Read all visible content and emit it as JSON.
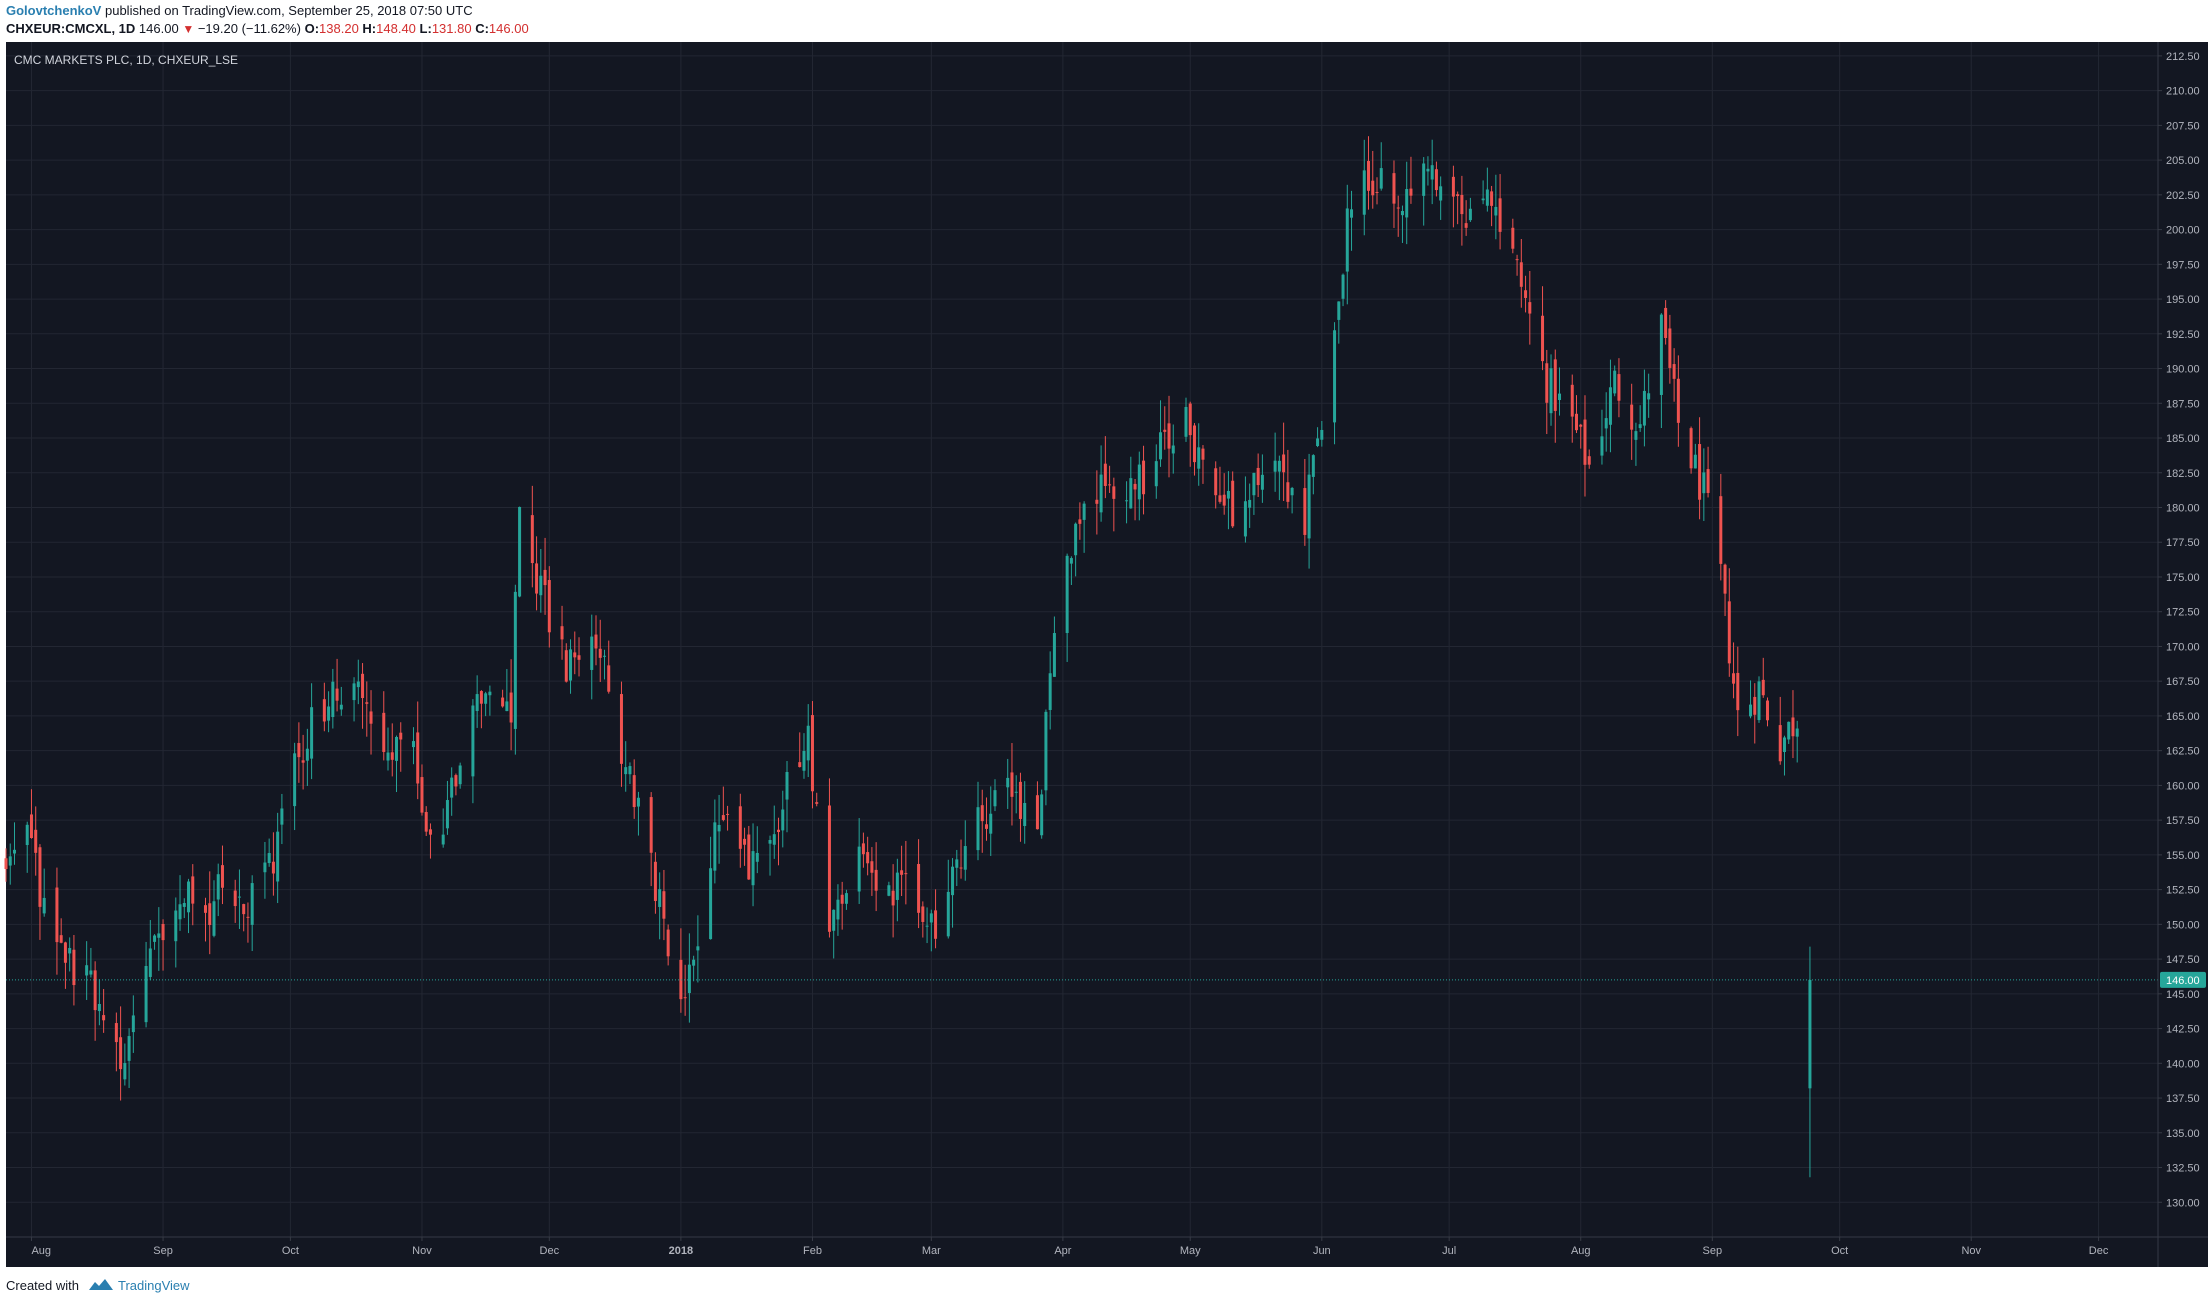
{
  "header": {
    "author": "GolovtchenkoV",
    "published_text": "published on TradingView.com, September 25, 2018 07:50 UTC",
    "symbol": "CHXEUR:CMCXL, 1D",
    "last": "146.00",
    "change": "−19.20 (−11.62%)",
    "o_label": "O:",
    "o_value": "138.20",
    "h_label": "H:",
    "h_value": "148.40",
    "l_label": "L:",
    "l_value": "131.80",
    "c_label": "C:",
    "c_value": "146.00"
  },
  "footer": {
    "created_with": "Created with",
    "brand": "TradingView"
  },
  "colors": {
    "background": "#131722",
    "grid": "#232733",
    "up": "#26a69a",
    "down": "#ef5350",
    "axis_text": "#b2b5be",
    "last_price_bg": "#26a69a"
  },
  "chart_data": {
    "type": "candlestick",
    "title": "CMC MARKETS PLC, 1D, CHXEUR_LSE",
    "ylim": [
      127.5,
      213.5
    ],
    "y_ticks": [
      "130.00",
      "132.50",
      "135.00",
      "137.50",
      "140.00",
      "142.50",
      "145.00",
      "147.50",
      "150.00",
      "152.50",
      "155.00",
      "157.50",
      "160.00",
      "162.50",
      "165.00",
      "167.50",
      "170.00",
      "172.50",
      "175.00",
      "177.50",
      "180.00",
      "182.50",
      "185.00",
      "187.50",
      "190.00",
      "192.50",
      "195.00",
      "197.50",
      "200.00",
      "202.50",
      "205.00",
      "207.50",
      "210.00",
      "212.50"
    ],
    "x_range": [
      "2017-07-26",
      "2018-12-15"
    ],
    "x_ticks": [
      {
        "label": "Aug",
        "date": "2017-08-01",
        "bold": false
      },
      {
        "label": "Sep",
        "date": "2017-09-01",
        "bold": false
      },
      {
        "label": "Oct",
        "date": "2017-10-01",
        "bold": false
      },
      {
        "label": "Nov",
        "date": "2017-11-01",
        "bold": false
      },
      {
        "label": "Dec",
        "date": "2017-12-01",
        "bold": false
      },
      {
        "label": "2018",
        "date": "2018-01-01",
        "bold": true
      },
      {
        "label": "Feb",
        "date": "2018-02-01",
        "bold": false
      },
      {
        "label": "Mar",
        "date": "2018-03-01",
        "bold": false
      },
      {
        "label": "Apr",
        "date": "2018-04-01",
        "bold": false
      },
      {
        "label": "May",
        "date": "2018-05-01",
        "bold": false
      },
      {
        "label": "Jun",
        "date": "2018-06-01",
        "bold": false
      },
      {
        "label": "Jul",
        "date": "2018-07-01",
        "bold": false
      },
      {
        "label": "Aug",
        "date": "2018-08-01",
        "bold": false
      },
      {
        "label": "Sep",
        "date": "2018-09-01",
        "bold": false
      },
      {
        "label": "Oct",
        "date": "2018-10-01",
        "bold": false
      },
      {
        "label": "Nov",
        "date": "2018-11-01",
        "bold": false
      },
      {
        "label": "Dec",
        "date": "2018-12-01",
        "bold": false
      }
    ],
    "last_price": {
      "value": 146.0,
      "label": "146.00"
    },
    "grid": true,
    "series": [
      {
        "waypoints": [
          [
            "2017-07-26",
            154
          ],
          [
            "2017-07-31",
            157
          ],
          [
            "2017-08-04",
            151
          ],
          [
            "2017-08-10",
            147
          ],
          [
            "2017-08-16",
            145
          ],
          [
            "2017-08-21",
            140
          ],
          [
            "2017-08-25",
            143
          ],
          [
            "2017-08-30",
            149
          ],
          [
            "2017-09-05",
            153
          ],
          [
            "2017-09-11",
            151
          ],
          [
            "2017-09-15",
            153
          ],
          [
            "2017-09-21",
            152
          ],
          [
            "2017-09-27",
            154
          ],
          [
            "2017-10-02",
            161
          ],
          [
            "2017-10-06",
            165
          ],
          [
            "2017-10-12",
            167
          ],
          [
            "2017-10-18",
            166
          ],
          [
            "2017-10-24",
            163
          ],
          [
            "2017-10-30",
            162
          ],
          [
            "2017-11-03",
            155
          ],
          [
            "2017-11-08",
            160
          ],
          [
            "2017-11-13",
            165
          ],
          [
            "2017-11-17",
            167
          ],
          [
            "2017-11-22",
            166
          ],
          [
            "2017-11-24",
            181
          ],
          [
            "2017-11-29",
            174
          ],
          [
            "2017-12-05",
            169
          ],
          [
            "2017-12-11",
            172
          ],
          [
            "2017-12-15",
            167
          ],
          [
            "2018-01-01",
            145
          ],
          [
            "2018-01-05",
            150
          ],
          [
            "2018-01-10",
            158
          ],
          [
            "2018-01-15",
            154
          ],
          [
            "2018-01-22",
            156
          ],
          [
            "2018-01-26",
            160
          ],
          [
            "2018-01-31",
            163
          ],
          [
            "2018-02-05",
            150
          ],
          [
            "2018-02-12",
            154
          ],
          [
            "2018-02-19",
            153
          ],
          [
            "2018-02-26",
            152
          ],
          [
            "2018-03-02",
            150
          ],
          [
            "2018-03-08",
            155
          ],
          [
            "2018-03-14",
            158
          ],
          [
            "2018-03-20",
            160
          ],
          [
            "2018-03-26",
            157
          ],
          [
            "2018-03-30",
            172
          ],
          [
            "2018-04-05",
            179
          ],
          [
            "2018-04-12",
            182
          ],
          [
            "2018-04-18",
            181
          ],
          [
            "2018-04-25",
            185
          ],
          [
            "2018-04-30",
            186
          ],
          [
            "2018-05-04",
            183
          ],
          [
            "2018-05-10",
            180
          ],
          [
            "2018-05-16",
            181
          ],
          [
            "2018-05-22",
            182
          ],
          [
            "2018-05-28",
            179
          ],
          [
            "2018-06-01",
            187
          ],
          [
            "2018-06-04",
            194
          ],
          [
            "2018-06-08",
            202
          ],
          [
            "2018-06-14",
            204
          ],
          [
            "2018-06-20",
            202
          ],
          [
            "2018-06-26",
            205
          ],
          [
            "2018-07-02",
            203
          ],
          [
            "2018-07-06",
            201
          ],
          [
            "2018-07-12",
            202
          ],
          [
            "2018-07-18",
            196
          ],
          [
            "2018-07-24",
            189
          ],
          [
            "2018-07-30",
            186
          ],
          [
            "2018-08-03",
            183
          ],
          [
            "2018-08-09",
            189
          ],
          [
            "2018-08-15",
            186
          ],
          [
            "2018-08-20",
            193
          ],
          [
            "2018-08-24",
            186
          ],
          [
            "2018-08-30",
            181
          ],
          [
            "2018-09-03",
            175
          ],
          [
            "2018-09-07",
            165
          ],
          [
            "2018-09-12",
            167
          ],
          [
            "2018-09-17",
            163
          ],
          [
            "2018-09-21",
            165
          ],
          [
            "2018-09-24",
            146
          ]
        ]
      }
    ]
  }
}
